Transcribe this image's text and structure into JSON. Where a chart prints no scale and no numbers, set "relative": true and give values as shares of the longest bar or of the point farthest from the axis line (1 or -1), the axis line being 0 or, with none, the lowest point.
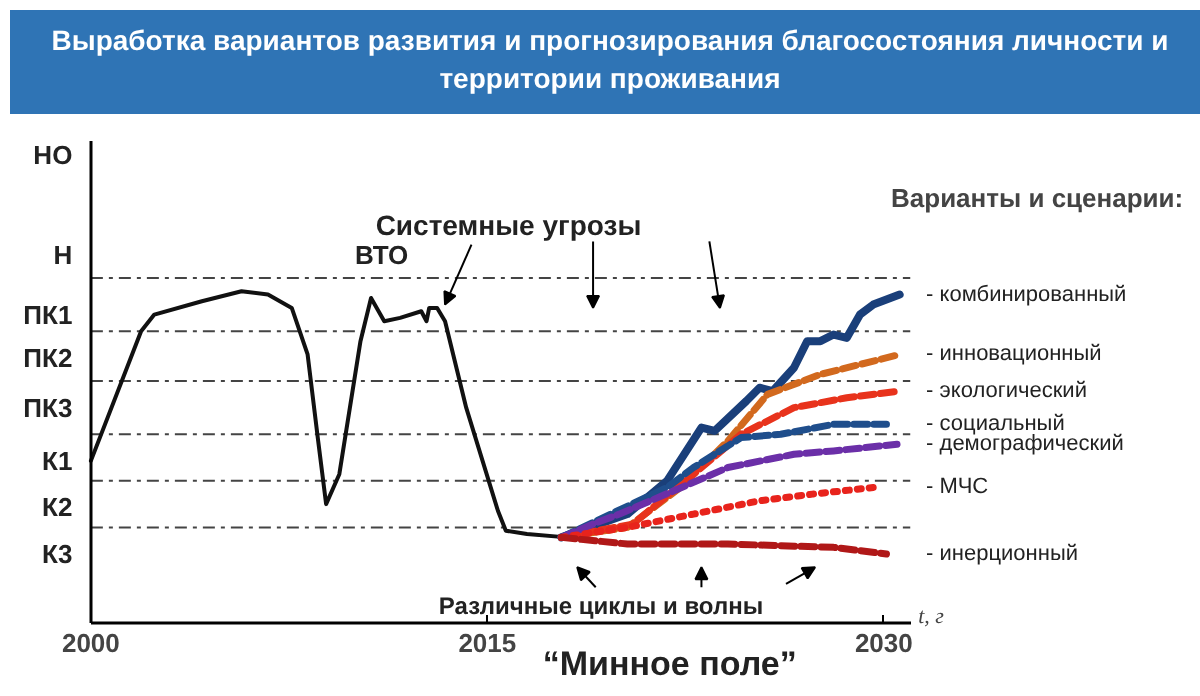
{
  "chart_data": {
    "type": "line",
    "title": "Выработка вариантов развития и прогнозирования благосостояния личности и территории проживания",
    "xlabel": "t, г",
    "legend_title": "Варианты и сценарии:",
    "relative": true,
    "xlim": [
      2000,
      2031
    ],
    "xticks": [
      2000,
      2015,
      2030
    ],
    "grid": false,
    "legend": "right",
    "ref_lines": [
      {
        "axis": "y",
        "value": 1.04,
        "color": "#444444",
        "line_style": "dashed"
      },
      {
        "axis": "y",
        "value": 0.88,
        "color": "#444444",
        "line_style": "dashed"
      },
      {
        "axis": "y",
        "value": 0.73,
        "color": "#444444",
        "line_style": "dashed"
      },
      {
        "axis": "y",
        "value": 0.57,
        "color": "#444444",
        "line_style": "dashed"
      },
      {
        "axis": "y",
        "value": 0.43,
        "color": "#444444",
        "line_style": "dashed"
      },
      {
        "axis": "y",
        "value": 0.29,
        "color": "#444444",
        "line_style": "dashed"
      }
    ],
    "annotations": [
      "ВТО",
      "Системные угрозы",
      "Различные циклы и волны",
      "“Минное поле”",
      "НО",
      "Н",
      "ПК1",
      "ПК2",
      "ПК3",
      "К1",
      "К2",
      "К3"
    ],
    "series": [
      {
        "color": "#111111",
        "line_style": "solid",
        "x": [
          2000,
          2001.9,
          2002.4,
          2004.2,
          2005.7,
          2006.7,
          2007.6,
          2008.2,
          2008.6,
          2008.9,
          2009.4,
          2010.2,
          2010.6,
          2011.1,
          2011.7,
          2012.5,
          2012.7,
          2012.8,
          2013.1,
          2013.4,
          2014.2,
          2015.4,
          2015.7,
          2016.5,
          2018.0
        ],
        "values": [
          0.49,
          0.88,
          0.93,
          0.97,
          1,
          0.99,
          0.95,
          0.81,
          0.55,
          0.36,
          0.45,
          0.85,
          0.98,
          0.91,
          0.92,
          0.94,
          0.91,
          0.95,
          0.95,
          0.91,
          0.65,
          0.34,
          0.28,
          0.27,
          0.26
        ]
      },
      {
        "name": "- комбинированный",
        "color": "#1a3f7a",
        "line_style": "solid",
        "x": [
          2017.8,
          2020.3,
          2021.8,
          2023.1,
          2023.6,
          2024.8,
          2025.3,
          2025.8,
          2026.6,
          2027.1,
          2027.6,
          2028.1,
          2028.6,
          2029.1,
          2029.6,
          2030.6
        ],
        "values": [
          0.26,
          0.33,
          0.43,
          0.59,
          0.58,
          0.67,
          0.71,
          0.7,
          0.77,
          0.85,
          0.85,
          0.87,
          0.86,
          0.93,
          0.96,
          0.99
        ]
      },
      {
        "name": "- инновационный",
        "color": "#d2691e",
        "line_style": "dashed",
        "x": [
          2017.8,
          2020.3,
          2022.3,
          2024.1,
          2025.6,
          2027.6,
          2030.6
        ],
        "values": [
          0.26,
          0.29,
          0.41,
          0.55,
          0.69,
          0.75,
          0.81
        ]
      },
      {
        "name": "- экологический",
        "color": "#e8331c",
        "line_style": "dashed",
        "x": [
          2017.8,
          2020.5,
          2022.5,
          2024.6,
          2026.6,
          2028.6,
          2030.6
        ],
        "values": [
          0.26,
          0.3,
          0.43,
          0.57,
          0.65,
          0.68,
          0.7
        ]
      },
      {
        "name": "- социальный",
        "color": "#1f4e8c",
        "line_style": "dashed",
        "x": [
          2017.8,
          2021.8,
          2022.8,
          2024.6,
          2026.1,
          2028.1,
          2030.1
        ],
        "values": [
          0.26,
          0.41,
          0.47,
          0.56,
          0.57,
          0.6,
          0.6
        ]
      },
      {
        "name": "- демографический",
        "color": "#6b2fa8",
        "line_style": "dashed",
        "x": [
          2017.8,
          2019.0,
          2020.0,
          2024.1,
          2026.6,
          2028.1,
          2030.5
        ],
        "values": [
          0.26,
          0.3,
          0.33,
          0.47,
          0.51,
          0.52,
          0.54
        ]
      },
      {
        "name": "- МЧС",
        "color": "#e8231c",
        "line_style": "dotted",
        "x": [
          2017.8,
          2020.3,
          2022.8,
          2025.3,
          2027.3,
          2029.6
        ],
        "values": [
          0.26,
          0.29,
          0.33,
          0.37,
          0.39,
          0.41
        ]
      },
      {
        "name": "- инерционный",
        "color": "#b01818",
        "line_style": "dashed",
        "x": [
          2017.8,
          2020.3,
          2024.1,
          2028.1,
          2030.1
        ],
        "values": [
          0.26,
          0.24,
          0.24,
          0.23,
          0.21
        ]
      }
    ]
  }
}
